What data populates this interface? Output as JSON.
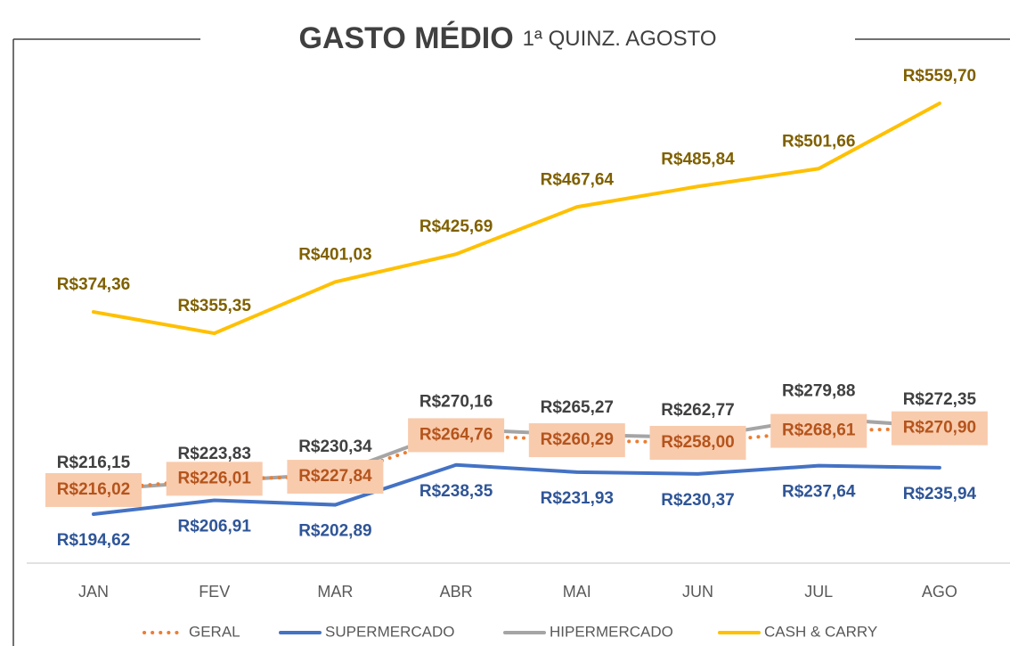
{
  "chart_data": {
    "type": "line",
    "title": "GASTO MÉDIO",
    "subtitle": "1ª QUINZ. AGOSTO",
    "categories": [
      "JAN",
      "FEV",
      "MAR",
      "ABR",
      "MAI",
      "JUN",
      "JUL",
      "AGO"
    ],
    "series": [
      {
        "name": "GERAL",
        "color": "#ed7d31",
        "dash": "dotted",
        "values": [
          216.02,
          226.01,
          227.84,
          264.76,
          260.29,
          258.0,
          268.61,
          270.9
        ],
        "value_labels": [
          "R$216,02",
          "R$226,01",
          "R$227,84",
          "R$264,76",
          "R$260,29",
          "R$258,00",
          "R$268,61",
          "R$270,90"
        ]
      },
      {
        "name": "SUPERMERCADO",
        "color": "#4472c4",
        "values": [
          194.62,
          206.91,
          202.89,
          238.35,
          231.93,
          230.37,
          237.64,
          235.94
        ],
        "value_labels": [
          "R$194,62",
          "R$206,91",
          "R$202,89",
          "R$238,35",
          "R$231,93",
          "R$230,37",
          "R$237,64",
          "R$235,94"
        ]
      },
      {
        "name": "HIPERMERCADO",
        "color": "#a5a5a5",
        "values": [
          216.15,
          223.83,
          230.34,
          270.16,
          265.27,
          262.77,
          279.88,
          272.35
        ],
        "value_labels": [
          "R$216,15",
          "R$223,83",
          "R$230,34",
          "R$270,16",
          "R$265,27",
          "R$262,77",
          "R$279,88",
          "R$272,35"
        ]
      },
      {
        "name": "CASH & CARRY",
        "color": "#ffc000",
        "values": [
          374.36,
          355.35,
          401.03,
          425.69,
          467.64,
          485.84,
          501.66,
          559.7
        ],
        "value_labels": [
          "R$374,36",
          "R$355,35",
          "R$401,03",
          "R$425,69",
          "R$467,64",
          "R$485,84",
          "R$501,66",
          "R$559,70"
        ]
      }
    ],
    "legend": "bottom"
  }
}
